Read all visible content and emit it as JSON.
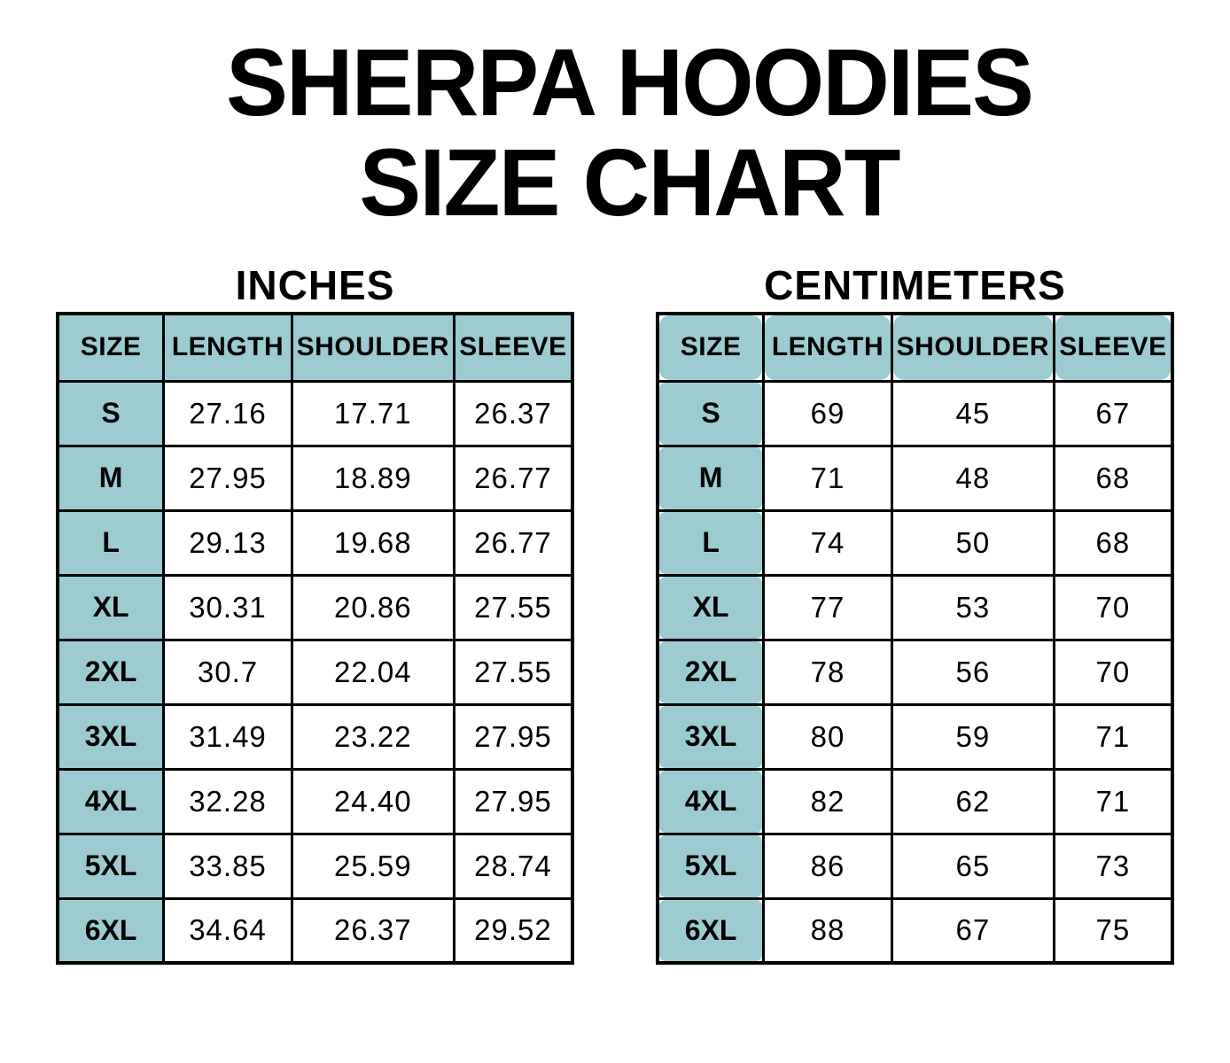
{
  "title": {
    "line1": "SHERPA HOODIES",
    "line2": "SIZE CHART"
  },
  "colors": {
    "teal": "#9cccd1",
    "border": "#000000",
    "text": "#000000",
    "background": "#ffffff"
  },
  "tables": [
    {
      "title": "INCHES",
      "columns": [
        "SIZE",
        "LENGTH",
        "SHOULDER",
        "SLEEVE"
      ],
      "rows": [
        [
          "S",
          "27.16",
          "17.71",
          "26.37"
        ],
        [
          "M",
          "27.95",
          "18.89",
          "26.77"
        ],
        [
          "L",
          "29.13",
          "19.68",
          "26.77"
        ],
        [
          "XL",
          "30.31",
          "20.86",
          "27.55"
        ],
        [
          "2XL",
          "30.7",
          "22.04",
          "27.55"
        ],
        [
          "3XL",
          "31.49",
          "23.22",
          "27.95"
        ],
        [
          "4XL",
          "32.28",
          "24.40",
          "27.95"
        ],
        [
          "5XL",
          "33.85",
          "25.59",
          "28.74"
        ],
        [
          "6XL",
          "34.64",
          "26.37",
          "29.52"
        ]
      ]
    },
    {
      "title": "CENTIMETERS",
      "columns": [
        "SIZE",
        "LENGTH",
        "SHOULDER",
        "SLEEVE"
      ],
      "rows": [
        [
          "S",
          "69",
          "45",
          "67"
        ],
        [
          "M",
          "71",
          "48",
          "68"
        ],
        [
          "L",
          "74",
          "50",
          "68"
        ],
        [
          "XL",
          "77",
          "53",
          "70"
        ],
        [
          "2XL",
          "78",
          "56",
          "70"
        ],
        [
          "3XL",
          "80",
          "59",
          "71"
        ],
        [
          "4XL",
          "82",
          "62",
          "71"
        ],
        [
          "5XL",
          "86",
          "65",
          "73"
        ],
        [
          "6XL",
          "88",
          "67",
          "75"
        ]
      ]
    }
  ]
}
